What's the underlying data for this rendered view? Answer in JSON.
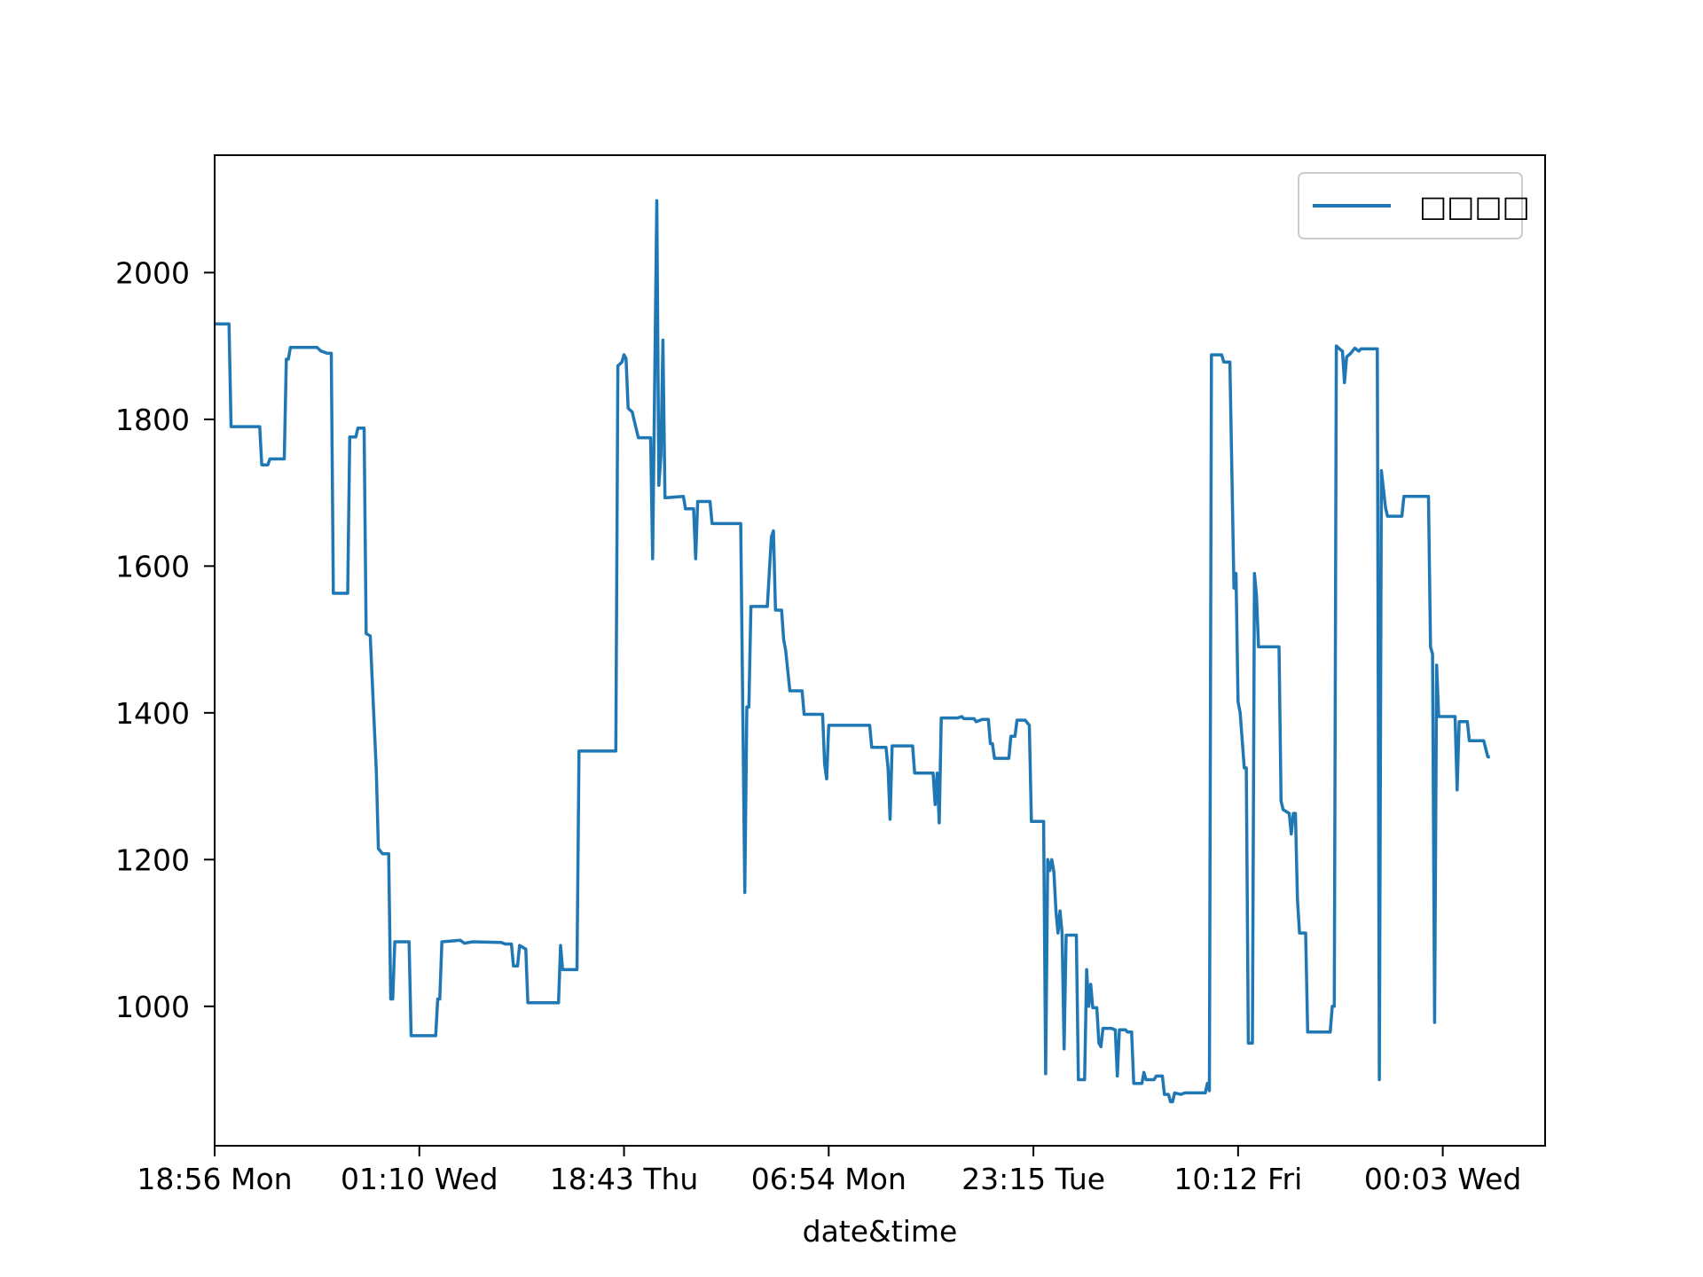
{
  "chart_data": {
    "type": "line",
    "title": "",
    "xlabel": "date&time",
    "ylabel": "",
    "x_tick_labels": [
      "18:56 Mon",
      "01:10 Wed",
      "18:43 Thu",
      "06:54 Mon",
      "23:15 Tue",
      "10:12 Fri",
      "00:03 Wed"
    ],
    "x_index_range": [
      0,
      650
    ],
    "x_tick_positions": [
      0,
      100,
      200,
      300,
      400,
      500,
      600
    ],
    "y_ticks": [
      1000,
      1200,
      1400,
      1600,
      1800,
      2000
    ],
    "ylim": [
      810,
      2160
    ],
    "grid": false,
    "legend": {
      "placement": "top-right"
    },
    "colors": {
      "series": "#1f77b4",
      "axes": "#000000",
      "legend_border": "#cccccc"
    },
    "series": [
      {
        "name": "□□□□",
        "points": [
          [
            0,
            1930
          ],
          [
            7,
            1930
          ],
          [
            8,
            1790
          ],
          [
            22,
            1790
          ],
          [
            23,
            1738
          ],
          [
            26,
            1738
          ],
          [
            27,
            1746
          ],
          [
            34,
            1746
          ],
          [
            35,
            1882
          ],
          [
            36,
            1882
          ],
          [
            37,
            1898
          ],
          [
            50,
            1898
          ],
          [
            52,
            1893
          ],
          [
            55,
            1890
          ],
          [
            57,
            1890
          ],
          [
            58,
            1563
          ],
          [
            65,
            1563
          ],
          [
            66,
            1776
          ],
          [
            69,
            1776
          ],
          [
            70,
            1788
          ],
          [
            73,
            1788
          ],
          [
            74,
            1508
          ],
          [
            76,
            1505
          ],
          [
            79,
            1320
          ],
          [
            80,
            1215
          ],
          [
            82,
            1208
          ],
          [
            85,
            1208
          ],
          [
            86,
            1010
          ],
          [
            87,
            1010
          ],
          [
            88,
            1088
          ],
          [
            95,
            1088
          ],
          [
            96,
            960
          ],
          [
            108,
            960
          ],
          [
            109,
            1010
          ],
          [
            110,
            1010
          ],
          [
            111,
            1088
          ],
          [
            120,
            1090
          ],
          [
            122,
            1086
          ],
          [
            126,
            1088
          ],
          [
            140,
            1087
          ],
          [
            142,
            1085
          ],
          [
            145,
            1085
          ],
          [
            146,
            1055
          ],
          [
            148,
            1055
          ],
          [
            149,
            1083
          ],
          [
            152,
            1078
          ],
          [
            153,
            1005
          ],
          [
            168,
            1005
          ],
          [
            169,
            1083
          ],
          [
            170,
            1050
          ],
          [
            177,
            1050
          ],
          [
            178,
            1348
          ],
          [
            196,
            1348
          ],
          [
            197,
            1873
          ],
          [
            199,
            1878
          ],
          [
            200,
            1888
          ],
          [
            201,
            1883
          ],
          [
            202,
            1815
          ],
          [
            204,
            1810
          ],
          [
            205,
            1798
          ],
          [
            207,
            1775
          ],
          [
            213,
            1775
          ],
          [
            214,
            1610
          ],
          [
            216,
            2098
          ],
          [
            217,
            1710
          ],
          [
            218,
            1750
          ],
          [
            219,
            1908
          ],
          [
            220,
            1693
          ],
          [
            229,
            1695
          ],
          [
            230,
            1678
          ],
          [
            234,
            1678
          ],
          [
            235,
            1610
          ],
          [
            236,
            1688
          ],
          [
            242,
            1688
          ],
          [
            243,
            1658
          ],
          [
            257,
            1658
          ],
          [
            259,
            1155
          ],
          [
            260,
            1408
          ],
          [
            261,
            1408
          ],
          [
            262,
            1545
          ],
          [
            270,
            1545
          ],
          [
            272,
            1640
          ],
          [
            273,
            1648
          ],
          [
            274,
            1540
          ],
          [
            277,
            1540
          ],
          [
            278,
            1500
          ],
          [
            279,
            1485
          ],
          [
            281,
            1430
          ],
          [
            287,
            1430
          ],
          [
            288,
            1398
          ],
          [
            297,
            1398
          ],
          [
            298,
            1330
          ],
          [
            299,
            1310
          ],
          [
            300,
            1383
          ],
          [
            320,
            1383
          ],
          [
            321,
            1353
          ],
          [
            328,
            1353
          ],
          [
            329,
            1325
          ],
          [
            330,
            1255
          ],
          [
            331,
            1355
          ],
          [
            341,
            1355
          ],
          [
            342,
            1318
          ],
          [
            351,
            1318
          ],
          [
            352,
            1275
          ],
          [
            353,
            1318
          ],
          [
            354,
            1250
          ],
          [
            355,
            1393
          ],
          [
            363,
            1393
          ],
          [
            365,
            1395
          ],
          [
            366,
            1392
          ],
          [
            371,
            1392
          ],
          [
            372,
            1388
          ],
          [
            375,
            1391
          ],
          [
            378,
            1391
          ],
          [
            379,
            1358
          ],
          [
            380,
            1358
          ],
          [
            381,
            1338
          ],
          [
            388,
            1338
          ],
          [
            389,
            1368
          ],
          [
            391,
            1368
          ],
          [
            392,
            1390
          ],
          [
            396,
            1390
          ],
          [
            398,
            1383
          ],
          [
            399,
            1252
          ],
          [
            405,
            1252
          ],
          [
            406,
            908
          ],
          [
            407,
            1200
          ],
          [
            408,
            1185
          ],
          [
            409,
            1200
          ],
          [
            410,
            1183
          ],
          [
            411,
            1130
          ],
          [
            412,
            1100
          ],
          [
            413,
            1130
          ],
          [
            414,
            1100
          ],
          [
            415,
            942
          ],
          [
            416,
            1097
          ],
          [
            421,
            1097
          ],
          [
            422,
            900
          ],
          [
            425,
            900
          ],
          [
            426,
            1050
          ],
          [
            427,
            1000
          ],
          [
            428,
            1030
          ],
          [
            429,
            998
          ],
          [
            431,
            998
          ],
          [
            432,
            950
          ],
          [
            433,
            945
          ],
          [
            434,
            970
          ],
          [
            438,
            970
          ],
          [
            440,
            968
          ],
          [
            441,
            905
          ],
          [
            442,
            968
          ],
          [
            445,
            968
          ],
          [
            446,
            965
          ],
          [
            448,
            965
          ],
          [
            449,
            895
          ],
          [
            453,
            895
          ],
          [
            454,
            910
          ],
          [
            455,
            900
          ],
          [
            459,
            900
          ],
          [
            460,
            905
          ],
          [
            463,
            905
          ],
          [
            464,
            880
          ],
          [
            466,
            880
          ],
          [
            467,
            870
          ],
          [
            468,
            870
          ],
          [
            469,
            882
          ],
          [
            472,
            880
          ],
          [
            474,
            882
          ],
          [
            484,
            882
          ],
          [
            485,
            895
          ],
          [
            486,
            885
          ],
          [
            487,
            1888
          ],
          [
            492,
            1888
          ],
          [
            493,
            1878
          ],
          [
            496,
            1878
          ],
          [
            498,
            1570
          ],
          [
            499,
            1590
          ],
          [
            500,
            1415
          ],
          [
            501,
            1400
          ],
          [
            503,
            1325
          ],
          [
            504,
            1325
          ],
          [
            505,
            950
          ],
          [
            507,
            950
          ],
          [
            508,
            1590
          ],
          [
            509,
            1560
          ],
          [
            510,
            1490
          ],
          [
            512,
            1490
          ],
          [
            520,
            1490
          ],
          [
            521,
            1280
          ],
          [
            522,
            1268
          ],
          [
            525,
            1263
          ],
          [
            526,
            1235
          ],
          [
            527,
            1263
          ],
          [
            528,
            1263
          ],
          [
            529,
            1145
          ],
          [
            530,
            1100
          ],
          [
            533,
            1100
          ],
          [
            534,
            965
          ],
          [
            538,
            965
          ],
          [
            545,
            965
          ],
          [
            546,
            1000
          ],
          [
            547,
            1000
          ],
          [
            548,
            1900
          ],
          [
            550,
            1895
          ],
          [
            551,
            1893
          ],
          [
            552,
            1850
          ],
          [
            553,
            1885
          ],
          [
            555,
            1890
          ],
          [
            557,
            1897
          ],
          [
            559,
            1893
          ],
          [
            560,
            1896
          ],
          [
            568,
            1896
          ],
          [
            569,
            900
          ],
          [
            570,
            1730
          ],
          [
            571,
            1705
          ],
          [
            572,
            1680
          ],
          [
            573,
            1668
          ],
          [
            580,
            1668
          ],
          [
            581,
            1695
          ],
          [
            593,
            1695
          ],
          [
            594,
            1490
          ],
          [
            595,
            1480
          ],
          [
            596,
            978
          ],
          [
            597,
            1465
          ],
          [
            598,
            1395
          ],
          [
            606,
            1395
          ],
          [
            607,
            1295
          ],
          [
            608,
            1388
          ],
          [
            612,
            1388
          ],
          [
            613,
            1362
          ],
          [
            620,
            1362
          ],
          [
            622,
            1340
          ],
          [
            623,
            1340
          ]
        ]
      }
    ]
  }
}
